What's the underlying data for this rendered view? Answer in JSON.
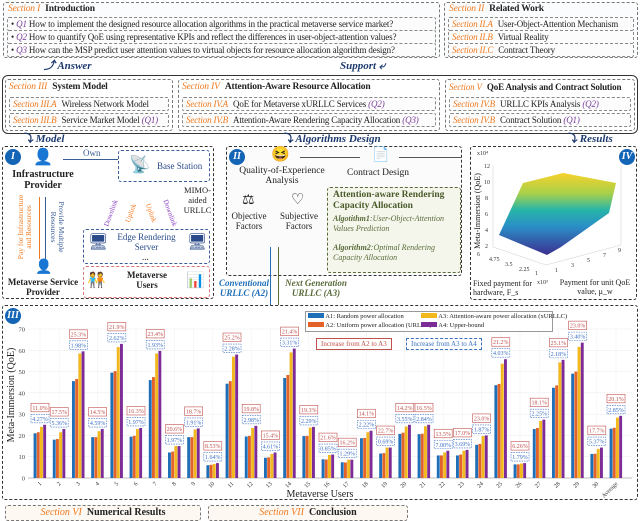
{
  "intro": {
    "section": "Section I",
    "title": "Introduction",
    "questions": [
      {
        "id": "Q1",
        "text": "How to implement the designed resource allocation algorithms in the practical metaverse service market?"
      },
      {
        "id": "Q2",
        "text": "How to quantify QoE using representative KPIs and reflect the differences in user-object-attention values?"
      },
      {
        "id": "Q3",
        "text": "How can the MSP predict user attention values to virtual objects for resource allocation algorithm design?"
      }
    ]
  },
  "related": {
    "section": "Section II",
    "title": "Related Work",
    "items": [
      {
        "section": "Section II.A",
        "title": "User-Object-Attention Mechanism"
      },
      {
        "section": "Section II.B",
        "title": "Virtual Reality"
      },
      {
        "section": "Section II.C",
        "title": "Contract Theory"
      }
    ]
  },
  "flows": {
    "answer": "Answer",
    "support": "Support",
    "model": "Model",
    "algorithms": "Algorithms Design",
    "results": "Results"
  },
  "system": {
    "section": "Section III",
    "title": "System Model",
    "items": [
      {
        "section": "Section III.A",
        "title": "Wireless Network Model",
        "q": ""
      },
      {
        "section": "Section III.B",
        "title": "Service Market Model",
        "q": "(Q1)"
      }
    ]
  },
  "allocation": {
    "section": "Section IV",
    "title": "Attention-Aware Resource Allocation",
    "items": [
      {
        "section": "Section IV.A",
        "title": "QoE for Metaverse xURLLC Services",
        "q": "(Q2)"
      },
      {
        "section": "Section IV.B",
        "title": "Attention-Aware Rendering Capacity Allocation",
        "q": "(Q3)"
      }
    ]
  },
  "qoe": {
    "section": "Section V",
    "title": "QoE Analysis and Contract Solution",
    "items": [
      {
        "section": "Section IV.B",
        "title": "URLLC KPIs Analysis",
        "q": "(Q2)"
      },
      {
        "section": "Section IV.B",
        "title": "Contract Solution",
        "q": "(Q1)"
      }
    ]
  },
  "panel1": {
    "badge": "I",
    "infra": "Infrastructure Provider",
    "msp": "Metaverse Service Provider",
    "own": "Own",
    "base": "Base Station",
    "mimo": "MIMO-aided URLLC",
    "edge": "Edge Rendering Server",
    "dots": "...",
    "users": "Metaverse Users",
    "pay": "Pay for Infrastructure and Resources",
    "provide": "Provide Multiple Resources",
    "downlink": "Downlink",
    "uplink": "Uplink"
  },
  "panel2": {
    "badge": "II",
    "qoe": "Quality-of-Experience Analysis",
    "contract": "Contract Design",
    "objective": "Objective Factors",
    "subjective": "Subjective Factors",
    "alloc_title": "Attention-aware Rendering Capacity Allocation",
    "alg1_name": "Algotithm1",
    "alg1": ":User-Object-Attention Values Prediction",
    "alg2_name": "Algorithm2",
    "alg2": ":Optimal Rendering Capacity Allocation",
    "conventional": "Conventional URLLC (A2)",
    "nextgen": "Next Generation URLLC (A3)"
  },
  "panel4": {
    "badge": "IV",
    "zlabel": "Meta-Immersion (QoE)",
    "zexp": "x10⁴",
    "xlabel": "Fixed payment for hardware, F_s",
    "xexp": "x10³",
    "ylabel": "Payment for unit QoE value, μ_w",
    "zticks": [
      "2",
      "4",
      "6",
      "8",
      "10",
      "12"
    ],
    "xticks": [
      "6",
      "4.75",
      "3.5",
      "2.25",
      "1"
    ],
    "yticks": [
      "1",
      "3",
      "5",
      "7",
      "9"
    ]
  },
  "bottom": {
    "s6": "Section VI",
    "s6t": "Numerical Results",
    "s7": "Section VII",
    "s7t": "Conclusion"
  },
  "colors": {
    "A1": "#1f6fb8",
    "A2": "#e2622a",
    "A3": "#f2b81c",
    "A4": "#7d2b96",
    "red": "#c0504d",
    "blue": "#3a6fc4",
    "section": "#f07a1f",
    "badge": "#1565b6"
  },
  "chart_data": {
    "type": "bar",
    "badge": "III",
    "xlabel": "Metaverse Users",
    "ylabel": "Meta-Immersion (QoE)",
    "ylim": [
      0,
      70
    ],
    "yticks": [
      0,
      10,
      20,
      30,
      40,
      50,
      60,
      70
    ],
    "grid": true,
    "legend": "top-center",
    "categories": [
      "1",
      "2",
      "3",
      "4",
      "5",
      "6",
      "7",
      "8",
      "9",
      "10",
      "11",
      "12",
      "13",
      "14",
      "15",
      "16",
      "17",
      "18",
      "19",
      "20",
      "21",
      "22",
      "23",
      "24",
      "25",
      "26",
      "27",
      "28",
      "29",
      "30",
      "Average"
    ],
    "series": [
      {
        "name": "A1: Random power allocation",
        "values": [
          21,
          18,
          45.5,
          19.2,
          49.5,
          19.4,
          46,
          12,
          19.2,
          6,
          44.3,
          19.5,
          9.5,
          47,
          19.7,
          8.8,
          7.4,
          18.7,
          11.5,
          20.7,
          20.6,
          10.6,
          10.6,
          15.6,
          43.6,
          6.4,
          23,
          42.4,
          49,
          11.3,
          23.2
        ]
      },
      {
        "name": "A2: Uniform power allocation (URLLC)",
        "values": [
          21.5,
          18.3,
          46.5,
          19.2,
          50.2,
          19.8,
          47.4,
          12.4,
          19.2,
          6.2,
          45.5,
          19.8,
          9.7,
          48.4,
          19.8,
          8.7,
          7.3,
          18.8,
          11.7,
          21.3,
          20.8,
          10.6,
          11,
          16,
          44.2,
          6.4,
          23.5,
          43.5,
          50,
          11.4,
          23.6
        ]
      },
      {
        "name": "A3: Attention-aware power allocation (xURLLC)",
        "values": [
          24,
          21.5,
          58.5,
          22,
          61.5,
          23,
          58.5,
          15,
          22.8,
          6.6,
          57,
          23.5,
          11.3,
          59,
          23.7,
          10.8,
          8.6,
          21.5,
          14.3,
          24.2,
          24.3,
          12,
          12.8,
          19.7,
          53.7,
          6.8,
          26.8,
          54.3,
          61.6,
          13.7,
          28.4
        ]
      },
      {
        "name": "A4: Upper-bound",
        "values": [
          25,
          23,
          59.5,
          23,
          63,
          23.5,
          59.7,
          15,
          23.3,
          7,
          58,
          24.5,
          12,
          60.8,
          24,
          11,
          8.6,
          22.2,
          14.3,
          25,
          25,
          12.8,
          13.2,
          20,
          55.8,
          7,
          27.4,
          55.5,
          63.6,
          14.3,
          29.2
        ]
      }
    ],
    "annotations": {
      "legend_red": "Increase from A2 to A3",
      "legend_blue": "Increase from A3 to A4",
      "a2_to_a3": [
        "11.0%",
        "17.5%",
        "25.3%",
        "14.5%",
        "21.9%",
        "16.3%",
        "23.4%",
        "20.6%",
        "18.7%",
        "8.53%",
        "25.2%",
        "19.8%",
        "15.4%",
        "21.4%",
        "19.3%",
        "21.6%",
        "16.2%",
        "14.1%",
        "22.7%",
        "14.2%",
        "16.5%",
        "13.5%",
        "17.0%",
        "23.0%",
        "21.2%",
        "6.26%",
        "18.1%",
        "25.1%",
        "23.0%",
        "17.7%",
        "20.1%"
      ],
      "a3_to_a4": [
        "4.27%",
        "5.36%",
        "1.98%",
        "4.59%",
        "2.62%",
        "1.97%",
        "1.93%",
        "1.97%",
        "1.91%",
        "1.64%",
        "2.28%",
        "2.98%",
        "4.61%",
        "3.31%",
        "2.29%",
        "0.85%",
        "1.29%",
        "2.22%",
        "0.69%",
        "3.55%",
        "2.84%",
        "7.00%",
        "3.69%",
        "1.87%",
        "4.03%",
        "1.79%",
        "2.25%",
        "2.18%",
        "3.40%",
        "5.37%",
        "2.85%"
      ]
    }
  }
}
